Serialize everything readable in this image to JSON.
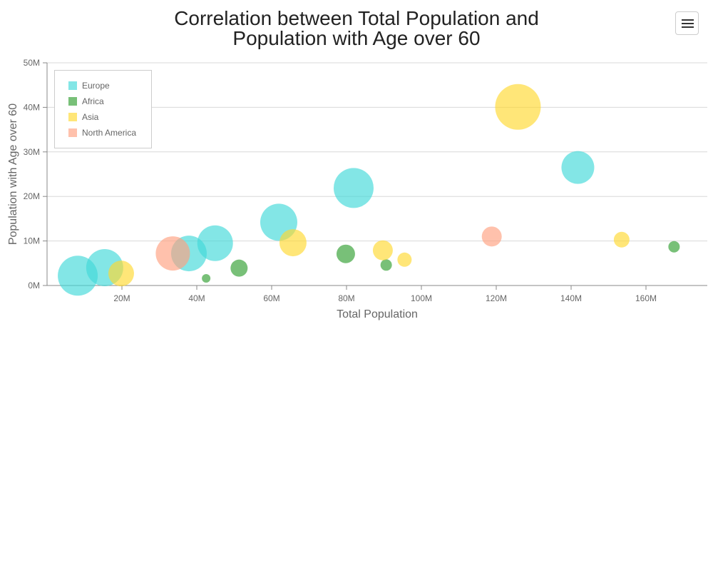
{
  "chart_data": {
    "type": "scatter",
    "title_line1": "Correlation between Total Population and",
    "title_line2": "Population with Age over 60",
    "xlabel": "Total Population",
    "ylabel": "Population with Age over 60",
    "xlim": [
      0,
      175
    ],
    "ylim": [
      0,
      50
    ],
    "x_ticks": [
      {
        "v": 20,
        "label": "20M"
      },
      {
        "v": 40,
        "label": "40M"
      },
      {
        "v": 60,
        "label": "60M"
      },
      {
        "v": 80,
        "label": "80M"
      },
      {
        "v": 100,
        "label": "100M"
      },
      {
        "v": 120,
        "label": "120M"
      },
      {
        "v": 140,
        "label": "140M"
      },
      {
        "v": 160,
        "label": "160M"
      }
    ],
    "y_ticks": [
      {
        "v": 0,
        "label": "0M"
      },
      {
        "v": 10,
        "label": "10M"
      },
      {
        "v": 20,
        "label": "20M"
      },
      {
        "v": 30,
        "label": "30M"
      },
      {
        "v": 40,
        "label": "40M"
      },
      {
        "v": 50,
        "label": "50M"
      }
    ],
    "grid": true,
    "legend_position": "top-left",
    "series": [
      {
        "name": "Europe",
        "color": "#40d8d8",
        "points": [
          {
            "x": 8.2,
            "y": 2.2,
            "size": 28
          },
          {
            "x": 15.4,
            "y": 4.0,
            "size": 26
          },
          {
            "x": 37.9,
            "y": 7.2,
            "size": 25
          },
          {
            "x": 44.9,
            "y": 9.5,
            "size": 25
          },
          {
            "x": 61.9,
            "y": 14.2,
            "size": 26
          },
          {
            "x": 81.9,
            "y": 21.9,
            "size": 28
          },
          {
            "x": 141.8,
            "y": 26.5,
            "size": 23
          }
        ]
      },
      {
        "name": "Africa",
        "color": "#2f9e2f",
        "points": [
          {
            "x": 42.5,
            "y": 1.6,
            "size": 6
          },
          {
            "x": 51.3,
            "y": 3.9,
            "size": 12
          },
          {
            "x": 79.8,
            "y": 7.1,
            "size": 13
          },
          {
            "x": 90.6,
            "y": 4.6,
            "size": 8
          },
          {
            "x": 167.5,
            "y": 8.7,
            "size": 8
          }
        ]
      },
      {
        "name": "Asia",
        "color": "#ffd830",
        "points": [
          {
            "x": 19.8,
            "y": 2.7,
            "size": 18
          },
          {
            "x": 65.7,
            "y": 9.6,
            "size": 19
          },
          {
            "x": 89.7,
            "y": 7.9,
            "size": 14
          },
          {
            "x": 95.5,
            "y": 5.8,
            "size": 10
          },
          {
            "x": 125.8,
            "y": 40.1,
            "size": 32
          },
          {
            "x": 153.5,
            "y": 10.3,
            "size": 11
          }
        ]
      },
      {
        "name": "North America",
        "color": "#ff9f80",
        "points": [
          {
            "x": 33.6,
            "y": 7.2,
            "size": 24
          },
          {
            "x": 118.8,
            "y": 11.0,
            "size": 14
          }
        ]
      }
    ]
  },
  "ui": {
    "menu_icon": "hamburger-menu-icon"
  }
}
